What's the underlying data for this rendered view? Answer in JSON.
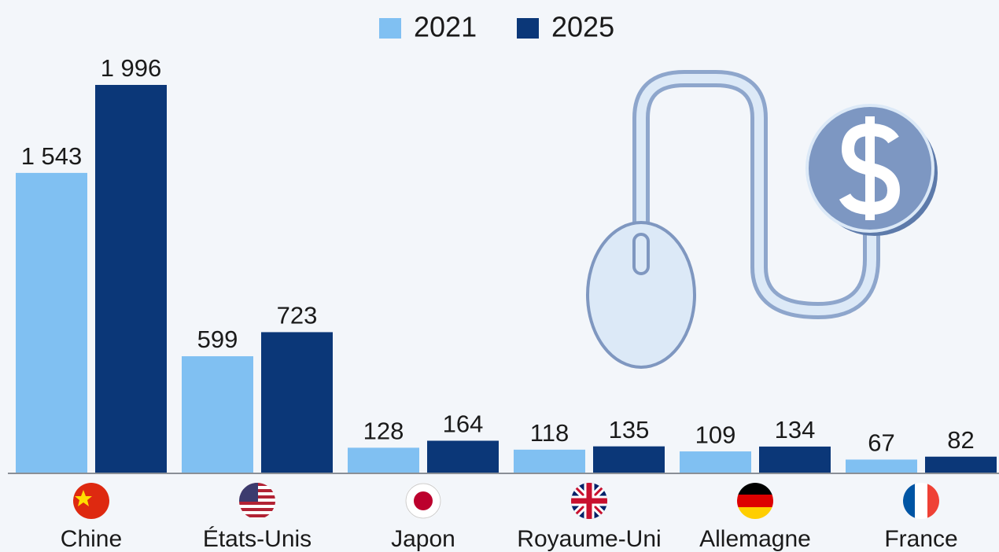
{
  "chart_data": {
    "type": "bar",
    "categories": [
      "Chine",
      "États-Unis",
      "Japon",
      "Royaume-Uni",
      "Allemagne",
      "France"
    ],
    "series": [
      {
        "name": "2021",
        "color": "#80c0f2",
        "values": [
          1543,
          599,
          128,
          118,
          109,
          67
        ],
        "value_labels": [
          "1 543",
          "599",
          "128",
          "118",
          "109",
          "67"
        ]
      },
      {
        "name": "2025",
        "color": "#0b3778",
        "values": [
          1996,
          723,
          164,
          135,
          134,
          82
        ],
        "value_labels": [
          "1 996",
          "723",
          "164",
          "135",
          "134",
          "82"
        ]
      }
    ]
  }
}
